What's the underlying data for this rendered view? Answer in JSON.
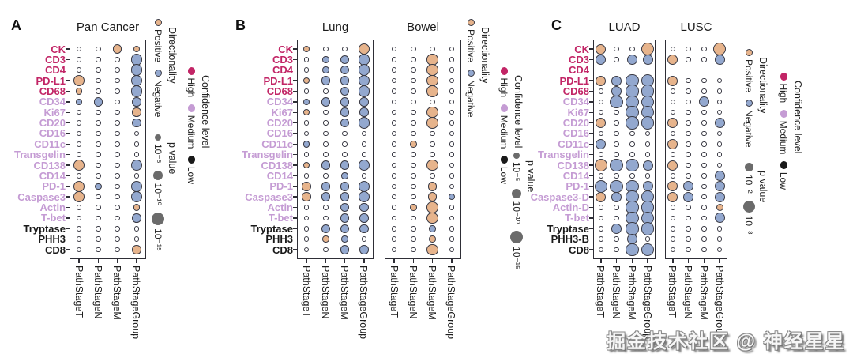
{
  "watermark": "掘金技术社区 @ 神经星星",
  "colors": {
    "positive": "#E7B48C",
    "negative": "#93A8CF",
    "high": "#C22566",
    "medium": "#C59CD4",
    "low": "#1A1A1A",
    "gray_dot": "#6B6B6B",
    "dot_outline": "#3A3A44"
  },
  "legend_labels": {
    "directionality_title": "Directionality",
    "positive": "Positive",
    "negative": "Negative",
    "pvalue_title": "p value",
    "confidence_title": "Confidence level",
    "high": "High",
    "medium": "Medium",
    "low": "Low"
  },
  "chart_data": [
    {
      "type": "dot-matrix",
      "panel": "A",
      "columns": [
        "PathStageT",
        "PathStageN",
        "PathStageM",
        "PathStageGroup"
      ],
      "pvalue_legend": [
        "10⁻⁵",
        "10⁻¹⁰",
        "10⁻¹⁵"
      ],
      "legend_note": "dot size encodes p value; fill encodes directionality; row label color encodes confidence level",
      "markers": [
        [
          "CK",
          "high"
        ],
        [
          "CD3",
          "high"
        ],
        [
          "CD4",
          "high"
        ],
        [
          "PD-L1",
          "high"
        ],
        [
          "CD68",
          "high"
        ],
        [
          "CD34",
          "medium"
        ],
        [
          "Ki67",
          "medium"
        ],
        [
          "CD20",
          "medium"
        ],
        [
          "CD16",
          "medium"
        ],
        [
          "CD11c",
          "medium"
        ],
        [
          "Transgelin",
          "medium"
        ],
        [
          "CD138",
          "medium"
        ],
        [
          "CD14",
          "medium"
        ],
        [
          "PD-1",
          "medium"
        ],
        [
          "Caspase3",
          "medium"
        ],
        [
          "Actin",
          "medium"
        ],
        [
          "T-bet",
          "medium"
        ],
        [
          "Tryptase",
          "low"
        ],
        [
          "PHH3",
          "low"
        ],
        [
          "CD8",
          "low"
        ]
      ],
      "subplots": [
        {
          "title": "Pan Cancer",
          "matrix": [
            [
              "O",
              "O",
              "P2",
              "P1"
            ],
            [
              "O",
              "O",
              "O",
              "N3"
            ],
            [
              "O",
              "O",
              "O",
              "N3"
            ],
            [
              "P3",
              "O",
              "O",
              "N3"
            ],
            [
              "P1",
              "O",
              "O",
              "N3"
            ],
            [
              "N1",
              "N2",
              "O",
              "N2"
            ],
            [
              "O",
              "O",
              "O",
              "P2"
            ],
            [
              "O",
              "O",
              "O",
              "N2"
            ],
            [
              "O",
              "O",
              "O",
              "O"
            ],
            [
              "O",
              "O",
              "O",
              "O"
            ],
            [
              "O",
              "O",
              "O",
              "O"
            ],
            [
              "P3",
              "O",
              "O",
              "N3"
            ],
            [
              "O",
              "O",
              "O",
              "O"
            ],
            [
              "P3",
              "N1",
              "O",
              "N3"
            ],
            [
              "P3",
              "O",
              "O",
              "N3"
            ],
            [
              "O",
              "O",
              "O",
              "P1"
            ],
            [
              "O",
              "O",
              "O",
              "N2"
            ],
            [
              "O",
              "O",
              "O",
              "O"
            ],
            [
              "O",
              "O",
              "O",
              "O"
            ],
            [
              "O",
              "O",
              "O",
              "P2"
            ]
          ]
        }
      ]
    },
    {
      "type": "dot-matrix",
      "panel": "B",
      "columns": [
        "PathStageT",
        "PathStageN",
        "PathStageM",
        "PathStageGroup"
      ],
      "pvalue_legend": [
        "10⁻⁵",
        "10⁻¹⁰",
        "10⁻¹⁵"
      ],
      "markers": [
        [
          "CK",
          "high"
        ],
        [
          "CD3",
          "high"
        ],
        [
          "CD4",
          "high"
        ],
        [
          "PD-L1",
          "high"
        ],
        [
          "CD68",
          "high"
        ],
        [
          "CD34",
          "medium"
        ],
        [
          "Ki67",
          "medium"
        ],
        [
          "CD20",
          "medium"
        ],
        [
          "CD16",
          "medium"
        ],
        [
          "CD11c",
          "medium"
        ],
        [
          "Transgelin",
          "medium"
        ],
        [
          "CD138",
          "medium"
        ],
        [
          "CD14",
          "medium"
        ],
        [
          "PD-1",
          "medium"
        ],
        [
          "Caspase3",
          "medium"
        ],
        [
          "Actin",
          "medium"
        ],
        [
          "T-bet",
          "medium"
        ],
        [
          "Tryptase",
          "low"
        ],
        [
          "PHH3",
          "low"
        ],
        [
          "CD8",
          "low"
        ]
      ],
      "subplots": [
        {
          "title": "Lung",
          "matrix": [
            [
              "P1",
              "O",
              "O",
              "P3"
            ],
            [
              "O",
              "N1",
              "N2",
              "N3"
            ],
            [
              "O",
              "N1",
              "N2",
              "N3"
            ],
            [
              "P1",
              "N2",
              "N2",
              "N3"
            ],
            [
              "O",
              "O",
              "N2",
              "N3"
            ],
            [
              "N1",
              "N2",
              "N2",
              "N2"
            ],
            [
              "P1",
              "O",
              "N2",
              "N2"
            ],
            [
              "O",
              "O",
              "N2",
              "N3"
            ],
            [
              "O",
              "O",
              "O",
              "O"
            ],
            [
              "N1",
              "O",
              "O",
              "O"
            ],
            [
              "O",
              "O",
              "O",
              "O"
            ],
            [
              "P1",
              "N2",
              "N2",
              "N3"
            ],
            [
              "O",
              "O",
              "N1",
              "O"
            ],
            [
              "P2",
              "N2",
              "N2",
              "N3"
            ],
            [
              "P2",
              "N2",
              "N2",
              "N3"
            ],
            [
              "O",
              "O",
              "N2",
              "N2"
            ],
            [
              "O",
              "O",
              "N2",
              "N2"
            ],
            [
              "O",
              "N2",
              "N2",
              "N2"
            ],
            [
              "O",
              "P1",
              "N1",
              "O"
            ],
            [
              "O",
              "O",
              "N2",
              "N2"
            ]
          ]
        },
        {
          "title": "Bowel",
          "matrix": [
            [
              "O",
              "O",
              "O",
              "O"
            ],
            [
              "O",
              "O",
              "P3",
              "O"
            ],
            [
              "O",
              "O",
              "P3",
              "O"
            ],
            [
              "O",
              "O",
              "P3",
              "O"
            ],
            [
              "O",
              "O",
              "P3",
              "O"
            ],
            [
              "O",
              "O",
              "O",
              "O"
            ],
            [
              "O",
              "O",
              "P3",
              "O"
            ],
            [
              "O",
              "O",
              "P3",
              "O"
            ],
            [
              "O",
              "O",
              "O",
              "O"
            ],
            [
              "O",
              "P1",
              "O",
              "O"
            ],
            [
              "O",
              "O",
              "O",
              "O"
            ],
            [
              "O",
              "O",
              "P3",
              "O"
            ],
            [
              "O",
              "O",
              "O",
              "O"
            ],
            [
              "O",
              "O",
              "P2",
              "O"
            ],
            [
              "O",
              "O",
              "P2",
              "N1"
            ],
            [
              "O",
              "P1",
              "P3",
              "O"
            ],
            [
              "O",
              "O",
              "P3",
              "O"
            ],
            [
              "O",
              "O",
              "N1",
              "O"
            ],
            [
              "O",
              "O",
              "P1",
              "O"
            ],
            [
              "O",
              "O",
              "P3",
              "O"
            ]
          ]
        }
      ]
    },
    {
      "type": "dot-matrix",
      "panel": "C",
      "columns": [
        "PathStageT",
        "PathStageN",
        "PathStageM",
        "PathStageGroup"
      ],
      "pvalue_legend": [
        "10⁻²",
        "10⁻³"
      ],
      "markers": [
        [
          "CK",
          "high"
        ],
        [
          "CD3",
          "high"
        ],
        [
          "CD4",
          "high"
        ],
        [
          "PD-L1",
          "high"
        ],
        [
          "CD68",
          "high"
        ],
        [
          "CD34",
          "medium"
        ],
        [
          "Ki67",
          "medium"
        ],
        [
          "CD20",
          "medium"
        ],
        [
          "CD16",
          "medium"
        ],
        [
          "CD11c",
          "medium"
        ],
        [
          "Transgelin",
          "medium"
        ],
        [
          "CD138",
          "medium"
        ],
        [
          "CD14",
          "medium"
        ],
        [
          "PD-1",
          "medium"
        ],
        [
          "Caspase3-D",
          "medium"
        ],
        [
          "Actin-D",
          "medium"
        ],
        [
          "T-bet",
          "medium"
        ],
        [
          "Tryptase",
          "low"
        ],
        [
          "PHH3-B",
          "low"
        ],
        [
          "CD8",
          "low"
        ]
      ],
      "subplots": [
        {
          "title": "LUAD",
          "matrix": [
            [
              "P2",
              "O",
              "O",
              "P3"
            ],
            [
              "N2",
              "O",
              "N2",
              "N2"
            ],
            [
              "X",
              "X",
              "X",
              "X"
            ],
            [
              "P2",
              "N2",
              "N3",
              "N3"
            ],
            [
              "O",
              "N2",
              "N3",
              "N3"
            ],
            [
              "O",
              "N3",
              "N3",
              "N3"
            ],
            [
              "O",
              "O",
              "N3",
              "N3"
            ],
            [
              "P2",
              "O",
              "N3",
              "N3"
            ],
            [
              "O",
              "O",
              "O",
              "O"
            ],
            [
              "N2",
              "O",
              "O",
              "O"
            ],
            [
              "O",
              "O",
              "O",
              "O"
            ],
            [
              "P3",
              "N3",
              "N3",
              "N2"
            ],
            [
              "O",
              "O",
              "O",
              "O"
            ],
            [
              "N3",
              "N3",
              "N3",
              "N2"
            ],
            [
              "P2",
              "N2",
              "N3",
              "N3"
            ],
            [
              "O",
              "O",
              "N3",
              "N3"
            ],
            [
              "O",
              "O",
              "N3",
              "N3"
            ],
            [
              "O",
              "N2",
              "N3",
              "N3"
            ],
            [
              "O",
              "O",
              "N2",
              "O"
            ],
            [
              "O",
              "O",
              "N3",
              "N3"
            ]
          ]
        },
        {
          "title": "LUSC",
          "matrix": [
            [
              "O",
              "O",
              "O",
              "P3"
            ],
            [
              "P2",
              "O",
              "O",
              "N2"
            ],
            [
              "X",
              "X",
              "X",
              "X"
            ],
            [
              "P2",
              "O",
              "O",
              "O"
            ],
            [
              "O",
              "O",
              "O",
              "O"
            ],
            [
              "O",
              "O",
              "N2",
              "O"
            ],
            [
              "O",
              "O",
              "O",
              "O"
            ],
            [
              "P2",
              "O",
              "O",
              "N2"
            ],
            [
              "O",
              "O",
              "O",
              "O"
            ],
            [
              "P2",
              "O",
              "O",
              "O"
            ],
            [
              "O",
              "O",
              "O",
              "O"
            ],
            [
              "P2",
              "O",
              "O",
              "O"
            ],
            [
              "O",
              "O",
              "O",
              "N2"
            ],
            [
              "P2",
              "N2",
              "O",
              "N2"
            ],
            [
              "P2",
              "N2",
              "O",
              "N2"
            ],
            [
              "O",
              "O",
              "O",
              "P1"
            ],
            [
              "O",
              "O",
              "O",
              "N2"
            ],
            [
              "O",
              "O",
              "O",
              "O"
            ],
            [
              "O",
              "O",
              "O",
              "O"
            ],
            [
              "O",
              "O",
              "O",
              "O"
            ]
          ]
        }
      ]
    }
  ]
}
